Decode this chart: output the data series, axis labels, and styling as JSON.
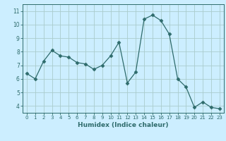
{
  "x": [
    0,
    1,
    2,
    3,
    4,
    5,
    6,
    7,
    8,
    9,
    10,
    11,
    12,
    13,
    14,
    15,
    16,
    17,
    18,
    19,
    20,
    21,
    22,
    23
  ],
  "y": [
    6.4,
    6.0,
    7.3,
    8.1,
    7.7,
    7.6,
    7.2,
    7.1,
    6.7,
    7.0,
    7.7,
    8.7,
    5.7,
    6.5,
    10.4,
    10.7,
    10.3,
    9.3,
    6.0,
    5.4,
    3.9,
    4.3,
    3.9,
    3.8
  ],
  "line_color": "#2e6b6b",
  "marker": "D",
  "marker_size": 2.5,
  "bg_color": "#cceeff",
  "grid_color": "#aacccc",
  "xlabel": "Humidex (Indice chaleur)",
  "ylim": [
    3.5,
    11.5
  ],
  "xlim": [
    -0.5,
    23.5
  ],
  "yticks": [
    4,
    5,
    6,
    7,
    8,
    9,
    10,
    11
  ],
  "xticks": [
    0,
    1,
    2,
    3,
    4,
    5,
    6,
    7,
    8,
    9,
    10,
    11,
    12,
    13,
    14,
    15,
    16,
    17,
    18,
    19,
    20,
    21,
    22,
    23
  ]
}
